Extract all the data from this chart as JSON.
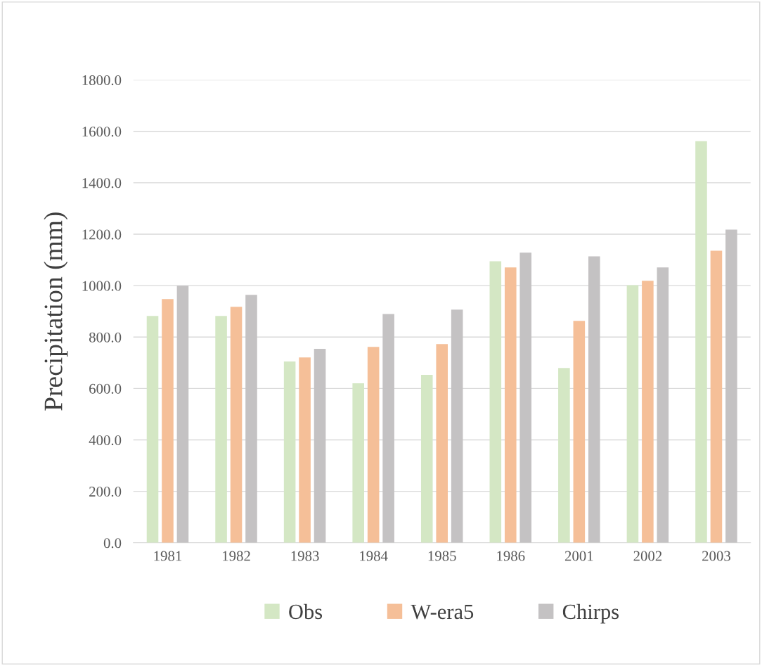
{
  "chart_data": {
    "type": "bar",
    "ylabel": "Precipitation (mm)",
    "categories": [
      "1981",
      "1982",
      "1983",
      "1984",
      "1985",
      "1986",
      "2001",
      "2002",
      "2003"
    ],
    "series": [
      {
        "name": "Obs",
        "color": "#d4e7c4",
        "values": [
          882,
          882,
          705,
          620,
          653,
          1095,
          680,
          1002,
          1562
        ]
      },
      {
        "name": "W-era5",
        "color": "#f5bf98",
        "values": [
          948,
          918,
          721,
          762,
          773,
          1071,
          863,
          1019,
          1136
        ]
      },
      {
        "name": "Chirps",
        "color": "#c4c2c3",
        "values": [
          1000,
          964,
          754,
          890,
          907,
          1128,
          1114,
          1071,
          1218
        ]
      }
    ],
    "ylim": [
      0,
      1800
    ],
    "yticks": [
      {
        "value": 0,
        "label": "0.0"
      },
      {
        "value": 200,
        "label": "200.0"
      },
      {
        "value": 400,
        "label": "400.0"
      },
      {
        "value": 600,
        "label": "600.0"
      },
      {
        "value": 800,
        "label": "800.0"
      },
      {
        "value": 1000,
        "label": "1000.0"
      },
      {
        "value": 1200,
        "label": "1200.0"
      },
      {
        "value": 1400,
        "label": "1400.0"
      },
      {
        "value": 1600,
        "label": "1600.0"
      },
      {
        "value": 1800,
        "label": "1800.0"
      }
    ],
    "grid": "y",
    "legend": "bottom"
  }
}
